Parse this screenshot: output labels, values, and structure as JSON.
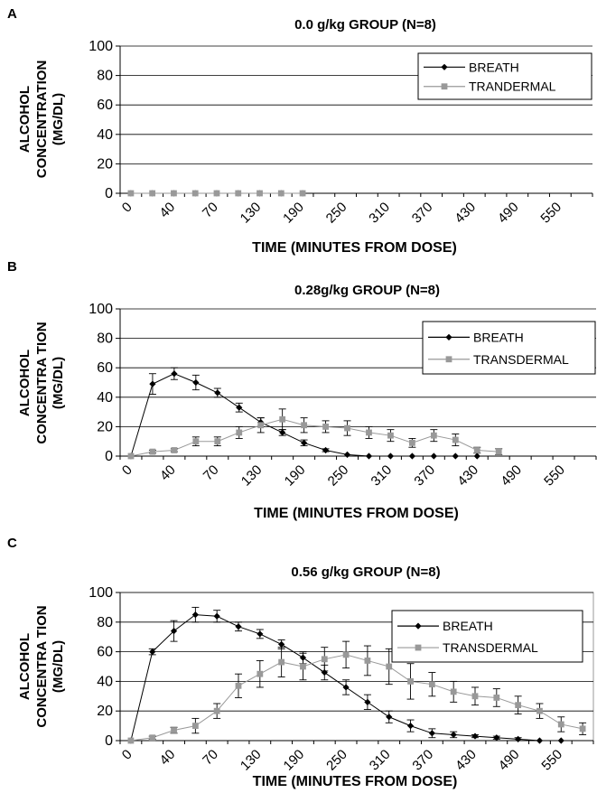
{
  "chart_data": [
    {
      "type": "line",
      "panel": "A",
      "title": "0.0 g/kg GROUP (N=8)",
      "xlabel": "TIME (MINUTES FROM DOSE)",
      "ylabel": [
        "ALCOHOL",
        "CONCENTRATION",
        "(MG/DL)"
      ],
      "ylim": [
        0,
        100
      ],
      "yticks": [
        0,
        20,
        40,
        60,
        80,
        100
      ],
      "xticks": [
        "0",
        "40",
        "70",
        "130",
        "190",
        "250",
        "310",
        "370",
        "430",
        "490",
        "550"
      ],
      "grid": true,
      "legend_position": "top-right",
      "colors": {
        "BREATH": "#000000",
        "TRANDERMAL": "#999999"
      },
      "series": [
        {
          "name": "BREATH",
          "marker": "diamond",
          "color": "#000000",
          "points": [
            [
              1,
              0
            ],
            [
              2,
              0
            ],
            [
              3,
              0
            ],
            [
              4,
              0
            ],
            [
              5,
              0
            ],
            [
              6,
              0
            ],
            [
              7,
              0
            ],
            [
              8,
              0
            ],
            [
              9,
              0
            ]
          ]
        },
        {
          "name": "TRANDERMAL",
          "marker": "square",
          "color": "#999999",
          "points": [
            [
              1,
              0
            ],
            [
              2,
              0
            ],
            [
              3,
              0
            ],
            [
              4,
              0
            ],
            [
              5,
              0
            ],
            [
              6,
              0
            ],
            [
              7,
              0
            ],
            [
              8,
              0
            ],
            [
              9,
              0
            ]
          ]
        }
      ]
    },
    {
      "type": "line",
      "panel": "B",
      "title": "0.28g/kg GROUP (N=8)",
      "xlabel": "TIME (MINUTES FROM DOSE)",
      "ylabel": [
        "ALCOHOL",
        "CONCENTRA TION",
        "(MG/DL)"
      ],
      "ylim": [
        0,
        100
      ],
      "yticks": [
        0,
        20,
        40,
        60,
        80,
        100
      ],
      "xticks": [
        "0",
        "40",
        "70",
        "130",
        "190",
        "250",
        "310",
        "370",
        "430",
        "490",
        "550"
      ],
      "grid": true,
      "legend_position": "top-right",
      "colors": {
        "BREATH": "#000000",
        "TRANSDERMAL": "#999999"
      },
      "series": [
        {
          "name": "BREATH",
          "marker": "diamond",
          "color": "#000000",
          "points": [
            [
              1,
              0,
              0
            ],
            [
              2,
              49,
              7
            ],
            [
              3,
              56,
              4
            ],
            [
              4,
              50,
              5
            ],
            [
              5,
              43,
              3
            ],
            [
              6,
              33,
              3
            ],
            [
              7,
              23,
              3
            ],
            [
              8,
              16,
              2
            ],
            [
              9,
              9,
              2
            ],
            [
              10,
              4,
              1
            ],
            [
              11,
              1,
              0
            ],
            [
              12,
              0,
              0
            ],
            [
              13,
              0,
              0
            ],
            [
              14,
              0,
              0
            ],
            [
              15,
              0,
              0
            ],
            [
              16,
              0,
              0
            ],
            [
              17,
              0,
              0
            ]
          ]
        },
        {
          "name": "TRANSDERMAL",
          "marker": "square",
          "color": "#999999",
          "points": [
            [
              1,
              0,
              0
            ],
            [
              2,
              3,
              1
            ],
            [
              3,
              4,
              1
            ],
            [
              4,
              10,
              3
            ],
            [
              5,
              10,
              3
            ],
            [
              6,
              16,
              4
            ],
            [
              7,
              21,
              5
            ],
            [
              8,
              25,
              7
            ],
            [
              9,
              21,
              5
            ],
            [
              10,
              20,
              4
            ],
            [
              11,
              19,
              5
            ],
            [
              12,
              16,
              4
            ],
            [
              13,
              14,
              4
            ],
            [
              14,
              9,
              3
            ],
            [
              15,
              14,
              4
            ],
            [
              16,
              11,
              4
            ],
            [
              17,
              4,
              2
            ],
            [
              18,
              3,
              2
            ]
          ]
        }
      ]
    },
    {
      "type": "line",
      "panel": "C",
      "title": "0.56 g/kg GROUP (N=8)",
      "xlabel": "TIME (MINUTES FROM DOSE)",
      "ylabel": [
        "ALCOHOL",
        "CONCENTRA TION",
        "(MG/DL)"
      ],
      "ylim": [
        0,
        100
      ],
      "yticks": [
        0,
        20,
        40,
        60,
        80,
        100
      ],
      "xticks": [
        "0",
        "40",
        "70",
        "130",
        "190",
        "250",
        "310",
        "370",
        "430",
        "490",
        "550"
      ],
      "grid": true,
      "legend_position": "top-right",
      "colors": {
        "BREATH": "#000000",
        "TRANSDERMAL": "#999999"
      },
      "series": [
        {
          "name": "BREATH",
          "marker": "diamond",
          "color": "#000000",
          "points": [
            [
              1,
              0,
              0
            ],
            [
              2,
              60,
              2
            ],
            [
              3,
              74,
              7
            ],
            [
              4,
              85,
              5
            ],
            [
              5,
              84,
              4
            ],
            [
              6,
              77,
              3
            ],
            [
              7,
              72,
              3
            ],
            [
              8,
              65,
              3
            ],
            [
              9,
              56,
              4
            ],
            [
              10,
              46,
              5
            ],
            [
              11,
              36,
              5
            ],
            [
              12,
              26,
              5
            ],
            [
              13,
              16,
              4
            ],
            [
              14,
              10,
              4
            ],
            [
              15,
              5,
              3
            ],
            [
              16,
              4,
              2
            ],
            [
              17,
              3,
              1
            ],
            [
              18,
              2,
              1
            ],
            [
              19,
              1,
              1
            ],
            [
              20,
              0,
              0
            ],
            [
              21,
              0,
              0
            ]
          ]
        },
        {
          "name": "TRANSDERMAL",
          "marker": "square",
          "color": "#999999",
          "points": [
            [
              1,
              0,
              0
            ],
            [
              2,
              2,
              1
            ],
            [
              3,
              7,
              2
            ],
            [
              4,
              10,
              5
            ],
            [
              5,
              20,
              5
            ],
            [
              6,
              37,
              8
            ],
            [
              7,
              45,
              9
            ],
            [
              8,
              53,
              10
            ],
            [
              9,
              50,
              9
            ],
            [
              10,
              55,
              8
            ],
            [
              11,
              58,
              9
            ],
            [
              12,
              54,
              10
            ],
            [
              13,
              50,
              12
            ],
            [
              14,
              40,
              12
            ],
            [
              15,
              38,
              8
            ],
            [
              16,
              33,
              7
            ],
            [
              17,
              30,
              6
            ],
            [
              18,
              29,
              6
            ],
            [
              19,
              24,
              6
            ],
            [
              20,
              20,
              5
            ],
            [
              21,
              11,
              5
            ],
            [
              22,
              8,
              4
            ]
          ]
        }
      ]
    }
  ]
}
